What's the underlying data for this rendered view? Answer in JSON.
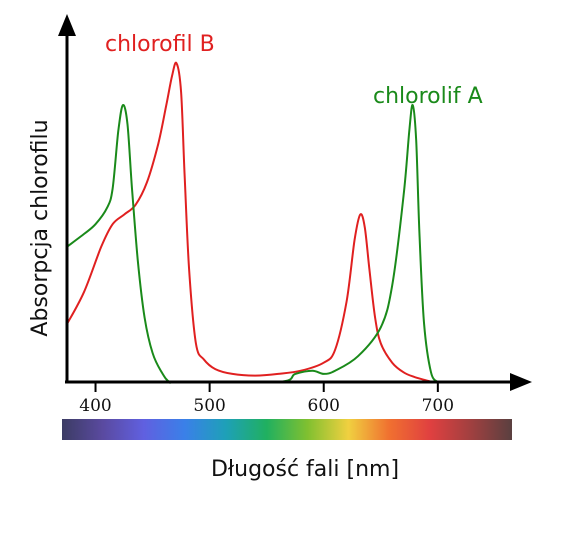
{
  "chart_data": {
    "type": "line",
    "xlabel": "Długość fali [nm]",
    "ylabel": "Absorpcja chlorofilu",
    "xlim": [
      375,
      765
    ],
    "ylim": [
      0,
      1.0
    ],
    "x_ticks": [
      400,
      500,
      600,
      700
    ],
    "x_tick_labels": [
      "400",
      "500",
      "600",
      "700"
    ],
    "y_ticks_shown": false,
    "spectrum_bar": [
      "#3c3c64",
      "#5a4aa0",
      "#6060e0",
      "#3a80e8",
      "#1ea0b8",
      "#20b060",
      "#80c030",
      "#f0d040",
      "#f07030",
      "#e04040",
      "#a04040",
      "#5a4040"
    ],
    "series": [
      {
        "name": "chlorofil B",
        "color": "#e02020",
        "x": [
          375,
          390,
          405,
          415,
          425,
          435,
          445,
          455,
          462,
          467,
          471,
          475,
          478,
          482,
          488,
          495,
          505,
          520,
          540,
          560,
          580,
          600,
          610,
          620,
          627,
          632,
          636,
          640,
          645,
          650,
          660,
          670,
          680,
          690,
          695
        ],
        "y": [
          0.18,
          0.28,
          0.42,
          0.49,
          0.52,
          0.55,
          0.62,
          0.74,
          0.86,
          0.95,
          0.99,
          0.9,
          0.65,
          0.35,
          0.12,
          0.07,
          0.04,
          0.025,
          0.02,
          0.025,
          0.035,
          0.06,
          0.1,
          0.25,
          0.44,
          0.52,
          0.48,
          0.35,
          0.2,
          0.12,
          0.06,
          0.03,
          0.015,
          0.005,
          0.0
        ]
      },
      {
        "name": "chlorolif A",
        "color": "#1a8a1a",
        "x": [
          375,
          390,
          400,
          410,
          415,
          420,
          424,
          428,
          432,
          437,
          443,
          450,
          458,
          465,
          475,
          560,
          575,
          590,
          600,
          610,
          630,
          650,
          660,
          670,
          675,
          678,
          681,
          684,
          688,
          694,
          700
        ],
        "y": [
          0.42,
          0.46,
          0.49,
          0.54,
          0.6,
          0.78,
          0.86,
          0.8,
          0.6,
          0.38,
          0.2,
          0.09,
          0.03,
          0.0,
          0.0,
          0.0,
          0.025,
          0.035,
          0.025,
          0.035,
          0.08,
          0.17,
          0.3,
          0.58,
          0.78,
          0.86,
          0.75,
          0.45,
          0.18,
          0.03,
          0.0
        ]
      }
    ]
  }
}
